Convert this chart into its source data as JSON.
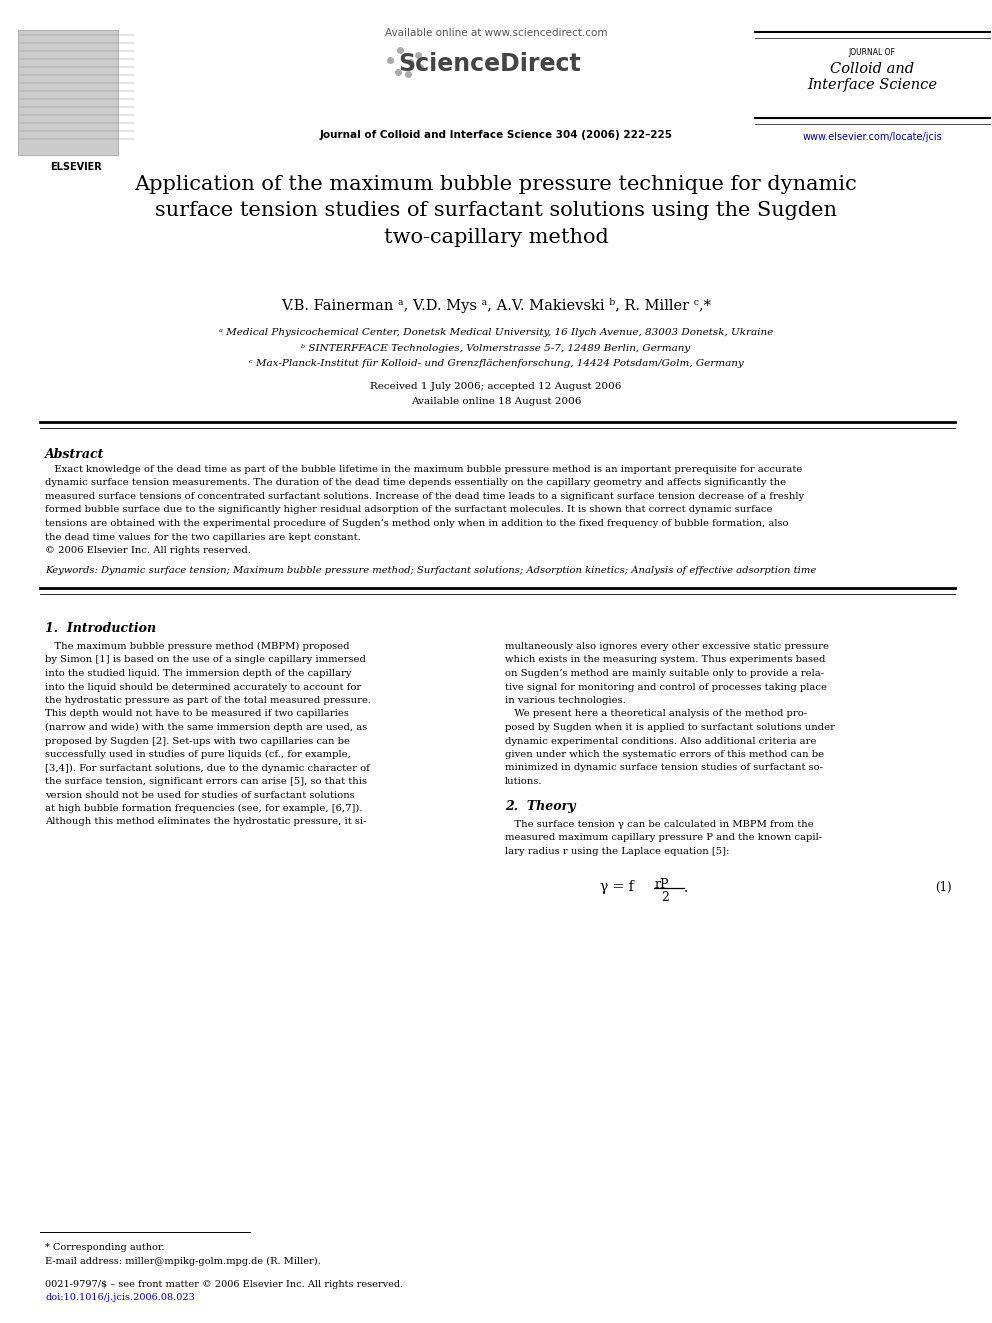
{
  "page_width": 9.92,
  "page_height": 13.23,
  "bg_color": "#ffffff",
  "header": {
    "available_online": "Available online at www.sciencedirect.com",
    "sciencedirect_text": "ScienceDirect",
    "journal_line": "Journal of Colloid and Interface Science 304 (2006) 222–225",
    "journal_name_line1": "JOURNAL OF",
    "journal_name_line2": "Colloid and",
    "journal_name_line3": "Interface Science",
    "journal_url": "www.elsevier.com/locate/jcis",
    "elsevier_text": "ELSEVIER"
  },
  "title": "Application of the maximum bubble pressure technique for dynamic\nsurface tension studies of surfactant solutions using the Sugden\ntwo-capillary method",
  "authors": "V.B. Fainerman ᵃ, V.D. Mys ᵃ, A.V. Makievski ᵇ, R. Miller ᶜ,*",
  "affiliation_a": "ᵃ Medical Physicochemical Center, Donetsk Medical University, 16 Ilych Avenue, 83003 Donetsk, Ukraine",
  "affiliation_b": "ᵇ SINTERFFACE Technologies, Volmerstrasse 5-7, 12489 Berlin, Germany",
  "affiliation_c": "ᶜ Max-Planck-Institut für Kolloid- und Grenzflächenforschung, 14424 Potsdam/Golm, Germany",
  "received": "Received 1 July 2006; accepted 12 August 2006",
  "available_online_date": "Available online 18 August 2006",
  "abstract_title": "Abstract",
  "keywords_line": "Keywords: Dynamic surface tension; Maximum bubble pressure method; Surfactant solutions; Adsorption kinetics; Analysis of effective adsorption time",
  "section1_title": "1.  Introduction",
  "section2_title": "2.  Theory",
  "equation1_num": "(1)",
  "footnote_star": "* Corresponding author.",
  "footnote_email": "E-mail address: miller@mpikg-golm.mpg.de (R. Miller).",
  "footnote_issn": "0021-9797/$ – see front matter © 2006 Elsevier Inc. All rights reserved.",
  "footnote_doi": "doi:10.1016/j.jcis.2006.08.023",
  "abstract_lines": [
    "   Exact knowledge of the dead time as part of the bubble lifetime in the maximum bubble pressure method is an important prerequisite for accurate",
    "dynamic surface tension measurements. The duration of the dead time depends essentially on the capillary geometry and affects significantly the",
    "measured surface tensions of concentrated surfactant solutions. Increase of the dead time leads to a significant surface tension decrease of a freshly",
    "formed bubble surface due to the significantly higher residual adsorption of the surfactant molecules. It is shown that correct dynamic surface",
    "tensions are obtained with the experimental procedure of Sugden’s method only when in addition to the fixed frequency of bubble formation, also",
    "the dead time values for the two capillaries are kept constant.",
    "© 2006 Elsevier Inc. All rights reserved."
  ],
  "col1_lines": [
    "   The maximum bubble pressure method (MBPM) proposed",
    "by Simon [1] is based on the use of a single capillary immersed",
    "into the studied liquid. The immersion depth of the capillary",
    "into the liquid should be determined accurately to account for",
    "the hydrostatic pressure as part of the total measured pressure.",
    "This depth would not have to be measured if two capillaries",
    "(narrow and wide) with the same immersion depth are used, as",
    "proposed by Sugden [2]. Set-ups with two capillaries can be",
    "successfully used in studies of pure liquids (cf., for example,",
    "[3,4]). For surfactant solutions, due to the dynamic character of",
    "the surface tension, significant errors can arise [5], so that this",
    "version should not be used for studies of surfactant solutions",
    "at high bubble formation frequencies (see, for example, [6,7]).",
    "Although this method eliminates the hydrostatic pressure, it si-"
  ],
  "col2_lines": [
    "multaneously also ignores every other excessive static pressure",
    "which exists in the measuring system. Thus experiments based",
    "on Sugden’s method are mainly suitable only to provide a rela-",
    "tive signal for monitoring and control of processes taking place",
    "in various technologies.",
    "   We present here a theoretical analysis of the method pro-",
    "posed by Sugden when it is applied to surfactant solutions under",
    "dynamic experimental conditions. Also additional criteria are",
    "given under which the systematic errors of this method can be",
    "minimized in dynamic surface tension studies of surfactant so-",
    "lutions."
  ],
  "sec2_lines": [
    "   The surface tension γ can be calculated in MBPM from the",
    "measured maximum capillary pressure P and the known capil-",
    "lary radius r using the Laplace equation [5]:"
  ]
}
